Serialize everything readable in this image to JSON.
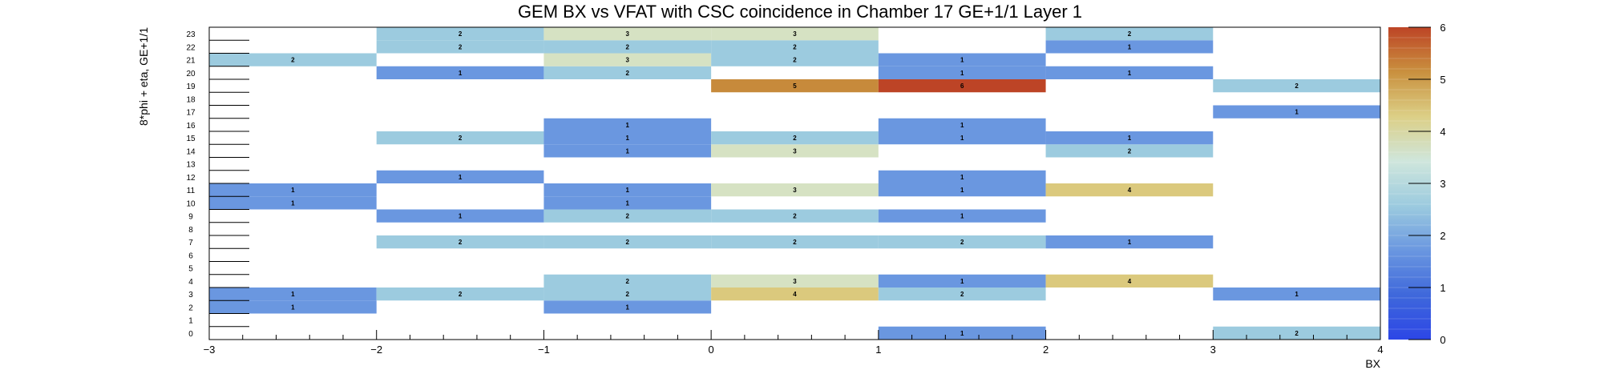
{
  "chart_data": {
    "type": "heatmap",
    "title": "GEM BX vs VFAT with CSC coincidence in Chamber 17 GE+1/1 Layer 1",
    "xlabel": "BX",
    "ylabel": "8*phi + eta, GE+1/1",
    "xlim": [
      -3,
      4
    ],
    "ylim": [
      0,
      24
    ],
    "x_ticks": [
      "−3",
      "−2",
      "−1",
      "0",
      "1",
      "2",
      "3",
      "4"
    ],
    "y_ticks": [
      "0",
      "1",
      "2",
      "3",
      "4",
      "5",
      "6",
      "7",
      "8",
      "9",
      "10",
      "11",
      "12",
      "13",
      "14",
      "15",
      "16",
      "17",
      "18",
      "19",
      "20",
      "21",
      "22",
      "23"
    ],
    "x_bins": [
      [
        -3,
        -2
      ],
      [
        -2,
        -1
      ],
      [
        -1,
        0
      ],
      [
        0,
        1
      ],
      [
        1,
        2
      ],
      [
        2,
        3
      ],
      [
        3,
        4
      ]
    ],
    "colorbar": {
      "range": [
        0,
        6
      ],
      "ticks": [
        "0",
        "1",
        "2",
        "3",
        "4",
        "5",
        "6"
      ]
    },
    "cells": [
      {
        "x": -2.5,
        "y": 2,
        "value": 1
      },
      {
        "x": -2.5,
        "y": 3,
        "value": 1
      },
      {
        "x": -2.5,
        "y": 10,
        "value": 1
      },
      {
        "x": -2.5,
        "y": 11,
        "value": 1
      },
      {
        "x": -2.5,
        "y": 21,
        "value": 2
      },
      {
        "x": -1.5,
        "y": 3,
        "value": 2
      },
      {
        "x": -1.5,
        "y": 7,
        "value": 2
      },
      {
        "x": -1.5,
        "y": 9,
        "value": 1
      },
      {
        "x": -1.5,
        "y": 12,
        "value": 1
      },
      {
        "x": -1.5,
        "y": 15,
        "value": 2
      },
      {
        "x": -1.5,
        "y": 20,
        "value": 1
      },
      {
        "x": -1.5,
        "y": 22,
        "value": 2
      },
      {
        "x": -1.5,
        "y": 23,
        "value": 2
      },
      {
        "x": -0.5,
        "y": 2,
        "value": 1
      },
      {
        "x": -0.5,
        "y": 3,
        "value": 2
      },
      {
        "x": -0.5,
        "y": 4,
        "value": 2
      },
      {
        "x": -0.5,
        "y": 7,
        "value": 2
      },
      {
        "x": -0.5,
        "y": 9,
        "value": 2
      },
      {
        "x": -0.5,
        "y": 10,
        "value": 1
      },
      {
        "x": -0.5,
        "y": 11,
        "value": 1
      },
      {
        "x": -0.5,
        "y": 14,
        "value": 1
      },
      {
        "x": -0.5,
        "y": 15,
        "value": 1
      },
      {
        "x": -0.5,
        "y": 16,
        "value": 1
      },
      {
        "x": -0.5,
        "y": 20,
        "value": 2
      },
      {
        "x": -0.5,
        "y": 21,
        "value": 3
      },
      {
        "x": -0.5,
        "y": 22,
        "value": 2
      },
      {
        "x": -0.5,
        "y": 23,
        "value": 3
      },
      {
        "x": 0.5,
        "y": 3,
        "value": 4
      },
      {
        "x": 0.5,
        "y": 4,
        "value": 3
      },
      {
        "x": 0.5,
        "y": 7,
        "value": 2
      },
      {
        "x": 0.5,
        "y": 9,
        "value": 2
      },
      {
        "x": 0.5,
        "y": 11,
        "value": 3
      },
      {
        "x": 0.5,
        "y": 14,
        "value": 3
      },
      {
        "x": 0.5,
        "y": 15,
        "value": 2
      },
      {
        "x": 0.5,
        "y": 19,
        "value": 5
      },
      {
        "x": 0.5,
        "y": 21,
        "value": 2
      },
      {
        "x": 0.5,
        "y": 22,
        "value": 2
      },
      {
        "x": 0.5,
        "y": 23,
        "value": 3
      },
      {
        "x": 1.5,
        "y": 0,
        "value": 1
      },
      {
        "x": 1.5,
        "y": 3,
        "value": 2
      },
      {
        "x": 1.5,
        "y": 4,
        "value": 1
      },
      {
        "x": 1.5,
        "y": 7,
        "value": 2
      },
      {
        "x": 1.5,
        "y": 9,
        "value": 1
      },
      {
        "x": 1.5,
        "y": 11,
        "value": 1
      },
      {
        "x": 1.5,
        "y": 12,
        "value": 1
      },
      {
        "x": 1.5,
        "y": 15,
        "value": 1
      },
      {
        "x": 1.5,
        "y": 16,
        "value": 1
      },
      {
        "x": 1.5,
        "y": 19,
        "value": 6
      },
      {
        "x": 1.5,
        "y": 20,
        "value": 1
      },
      {
        "x": 1.5,
        "y": 21,
        "value": 1
      },
      {
        "x": 2.5,
        "y": 4,
        "value": 4
      },
      {
        "x": 2.5,
        "y": 7,
        "value": 1
      },
      {
        "x": 2.5,
        "y": 11,
        "value": 4
      },
      {
        "x": 2.5,
        "y": 14,
        "value": 2
      },
      {
        "x": 2.5,
        "y": 15,
        "value": 1
      },
      {
        "x": 2.5,
        "y": 20,
        "value": 1
      },
      {
        "x": 2.5,
        "y": 22,
        "value": 1
      },
      {
        "x": 2.5,
        "y": 23,
        "value": 2
      },
      {
        "x": 3.5,
        "y": 0,
        "value": 2
      },
      {
        "x": 3.5,
        "y": 3,
        "value": 1
      },
      {
        "x": 3.5,
        "y": 17,
        "value": 1
      },
      {
        "x": 3.5,
        "y": 19,
        "value": 2
      }
    ],
    "value_colors": {
      "1": "#6a97e0",
      "2": "#9ccbdf",
      "3": "#d6e2c3",
      "4": "#dbc97d",
      "5": "#c78a3b",
      "6": "#bd4426"
    },
    "colorbar_stops": [
      "#2c46e6",
      "#3f68db",
      "#6a97e0",
      "#9ccbdf",
      "#cfe6dc",
      "#dccf86",
      "#c9903e",
      "#bd4426"
    ],
    "grid": false,
    "legend": "colorbar-right"
  }
}
